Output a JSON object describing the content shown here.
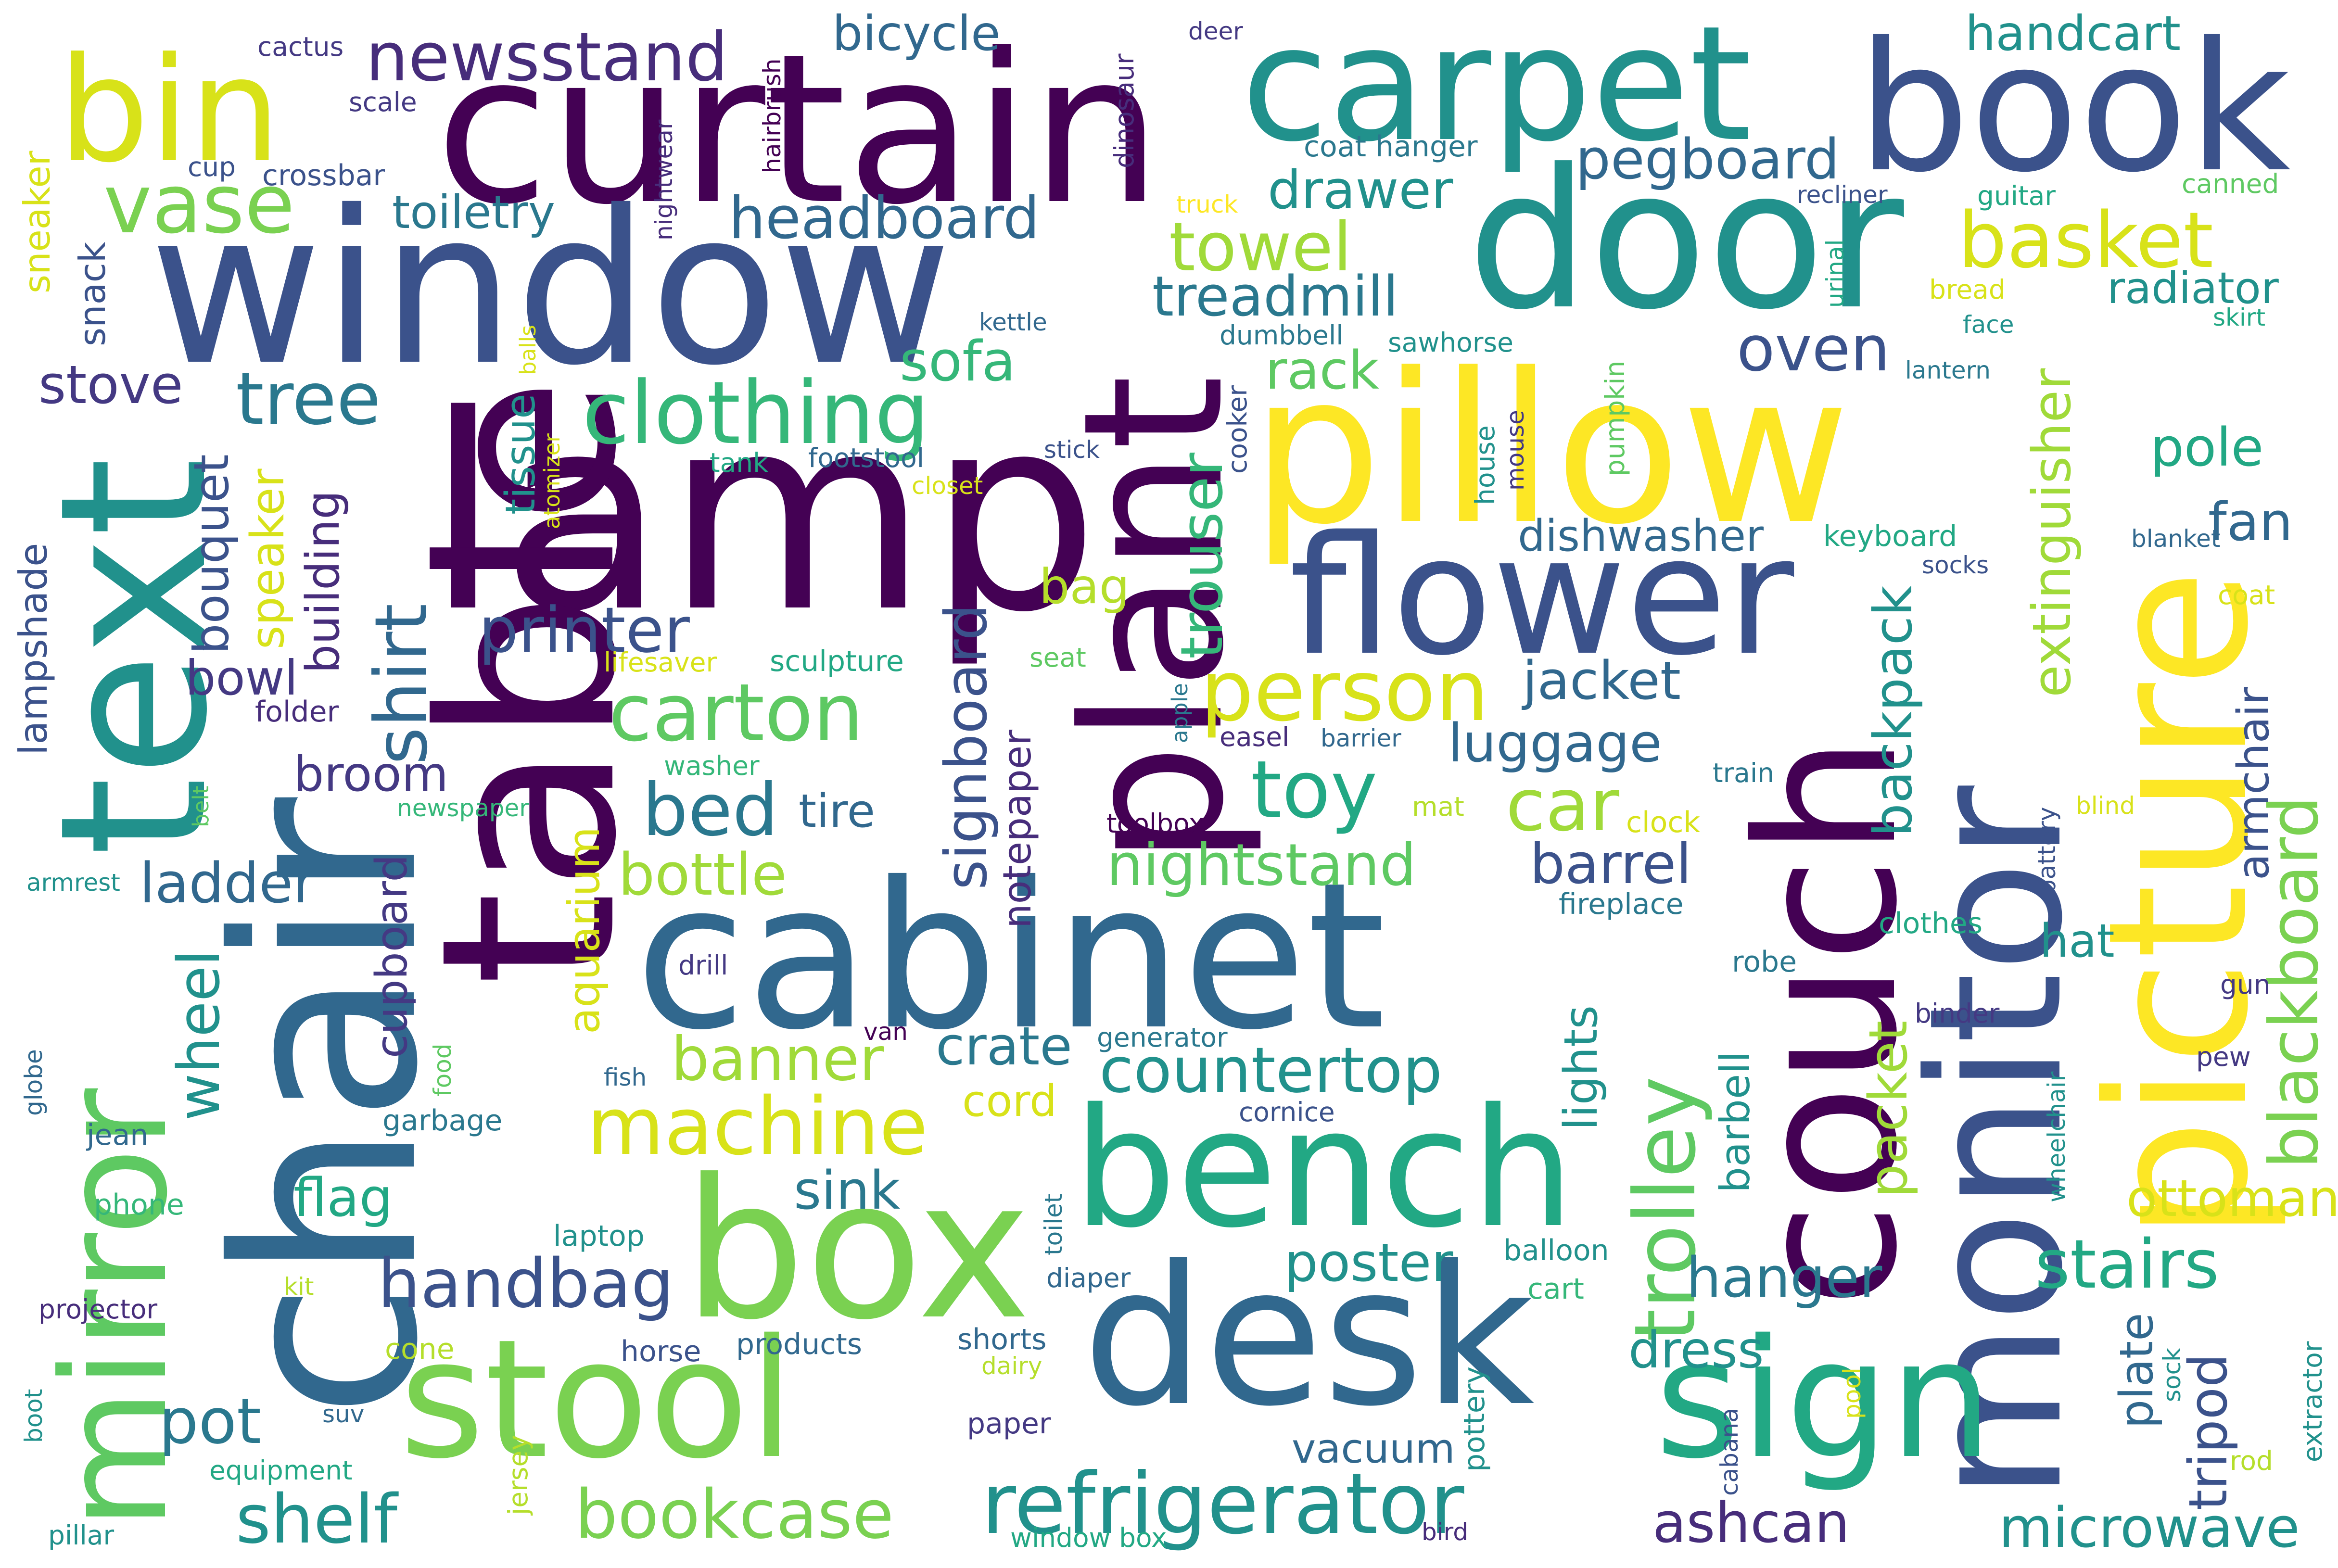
{
  "words": [
    {
      "text": "curtain",
      "color": "#440154"
    },
    {
      "text": "window",
      "color": "#3b528b"
    },
    {
      "text": "lamp",
      "color": "#440154"
    },
    {
      "text": "table",
      "color": "#440154"
    },
    {
      "text": "chair",
      "color": "#31688e"
    },
    {
      "text": "text",
      "color": "#21918c"
    },
    {
      "text": "mirror",
      "color": "#5ec962"
    },
    {
      "text": "bin",
      "color": "#d8e219"
    },
    {
      "text": "carpet",
      "color": "#21918c"
    },
    {
      "text": "book",
      "color": "#3b528b"
    },
    {
      "text": "door",
      "color": "#21918c"
    },
    {
      "text": "pillow",
      "color": "#fde725"
    },
    {
      "text": "flower",
      "color": "#3b528b"
    },
    {
      "text": "plant",
      "color": "#440154"
    },
    {
      "text": "picture",
      "color": "#fde725"
    },
    {
      "text": "couch",
      "color": "#440154"
    },
    {
      "text": "monitor",
      "color": "#3b528b"
    },
    {
      "text": "cabinet",
      "color": "#31688e"
    },
    {
      "text": "box",
      "color": "#7ad151"
    },
    {
      "text": "bench",
      "color": "#22a884"
    },
    {
      "text": "desk",
      "color": "#31688e"
    },
    {
      "text": "sign",
      "color": "#22a884"
    },
    {
      "text": "stool",
      "color": "#7ad151"
    },
    {
      "text": "newsstand",
      "color": "#472d7b"
    },
    {
      "text": "vase",
      "color": "#7ad151"
    },
    {
      "text": "clothing",
      "color": "#35b779"
    },
    {
      "text": "tree",
      "color": "#2a788e"
    },
    {
      "text": "printer",
      "color": "#3b528b"
    },
    {
      "text": "carton",
      "color": "#5ec962"
    },
    {
      "text": "person",
      "color": "#d8e219"
    },
    {
      "text": "refrigerator",
      "color": "#21918c"
    },
    {
      "text": "basket",
      "color": "#d8e219"
    },
    {
      "text": "bed",
      "color": "#2a788e"
    },
    {
      "text": "toy",
      "color": "#22a884"
    },
    {
      "text": "trolley",
      "color": "#5ec962"
    },
    {
      "text": "blackboard",
      "color": "#7ad151"
    },
    {
      "text": "machine",
      "color": "#d8e219"
    },
    {
      "text": "shelf",
      "color": "#21918c"
    },
    {
      "text": "bookcase",
      "color": "#7ad151"
    },
    {
      "text": "stairs",
      "color": "#22a884"
    },
    {
      "text": "handbag",
      "color": "#3b528b"
    },
    {
      "text": "hanger",
      "color": "#2a788e"
    },
    {
      "text": "microwave",
      "color": "#21918c"
    },
    {
      "text": "ashcan",
      "color": "#472d7b"
    },
    {
      "text": "countertop",
      "color": "#21918c"
    },
    {
      "text": "nightstand",
      "color": "#5ec962"
    },
    {
      "text": "signboard",
      "color": "#3b528b"
    },
    {
      "text": "oven",
      "color": "#3b528b"
    },
    {
      "text": "headboard",
      "color": "#31688e"
    },
    {
      "text": "shirt",
      "color": "#31688e"
    },
    {
      "text": "towel",
      "color": "#a0da39"
    },
    {
      "text": "treadmill",
      "color": "#2a788e"
    },
    {
      "text": "extinguisher",
      "color": "#a0da39"
    },
    {
      "text": "handcart",
      "color": "#21918c"
    },
    {
      "text": "pegboard",
      "color": "#31688e"
    },
    {
      "text": "bicycle",
      "color": "#31688e"
    },
    {
      "text": "drawer",
      "color": "#21918c"
    },
    {
      "text": "sofa",
      "color": "#35b779"
    },
    {
      "text": "rack",
      "color": "#5ec962"
    },
    {
      "text": "trouser",
      "color": "#35b779"
    },
    {
      "text": "toiletry",
      "color": "#2a788e"
    },
    {
      "text": "stove",
      "color": "#443983"
    },
    {
      "text": "bouquet",
      "color": "#3b528b"
    },
    {
      "text": "speaker",
      "color": "#d8e219"
    },
    {
      "text": "building",
      "color": "#472d7b"
    },
    {
      "text": "bowl",
      "color": "#443983"
    },
    {
      "text": "broom",
      "color": "#443983"
    },
    {
      "text": "ladder",
      "color": "#31688e"
    },
    {
      "text": "wheel",
      "color": "#21918c"
    },
    {
      "text": "cupboard",
      "color": "#443983"
    },
    {
      "text": "aquarium",
      "color": "#d8e219"
    },
    {
      "text": "bottle",
      "color": "#a0da39"
    },
    {
      "text": "banner",
      "color": "#a0da39"
    },
    {
      "text": "crate",
      "color": "#2a788e"
    },
    {
      "text": "tire",
      "color": "#31688e"
    },
    {
      "text": "car",
      "color": "#a0da39"
    },
    {
      "text": "luggage",
      "color": "#31688e"
    },
    {
      "text": "jacket",
      "color": "#31688e"
    },
    {
      "text": "dishwasher",
      "color": "#31688e"
    },
    {
      "text": "backpack",
      "color": "#21918c"
    },
    {
      "text": "barrel",
      "color": "#3b528b"
    },
    {
      "text": "lights",
      "color": "#21918c"
    },
    {
      "text": "packet",
      "color": "#a0da39"
    },
    {
      "text": "barbell",
      "color": "#21918c"
    },
    {
      "text": "hat",
      "color": "#21918c"
    },
    {
      "text": "ottoman",
      "color": "#d8e219"
    },
    {
      "text": "tripod",
      "color": "#3b528b"
    },
    {
      "text": "plate",
      "color": "#31688e"
    },
    {
      "text": "armchair",
      "color": "#3b528b"
    },
    {
      "text": "fan",
      "color": "#31688e"
    },
    {
      "text": "pole",
      "color": "#22a884"
    },
    {
      "text": "radiator",
      "color": "#21918c"
    },
    {
      "text": "poster",
      "color": "#21918c"
    },
    {
      "text": "dress",
      "color": "#21918c"
    },
    {
      "text": "vacuum",
      "color": "#31688e"
    },
    {
      "text": "sink",
      "color": "#2a788e"
    },
    {
      "text": "flag",
      "color": "#22a884"
    },
    {
      "text": "pot",
      "color": "#2a788e"
    },
    {
      "text": "cord",
      "color": "#d8e219"
    },
    {
      "text": "bag",
      "color": "#b5de2b"
    },
    {
      "text": "tissue",
      "color": "#21918c"
    },
    {
      "text": "lampshade",
      "color": "#3b528b"
    },
    {
      "text": "snack",
      "color": "#3b528b"
    },
    {
      "text": "sneaker",
      "color": "#d8e219"
    },
    {
      "text": "notepaper",
      "color": "#472d7b"
    },
    {
      "text": "scale",
      "color": "#443983"
    },
    {
      "text": "cactus",
      "color": "#443983"
    },
    {
      "text": "cup",
      "color": "#3b528b"
    },
    {
      "text": "crossbar",
      "color": "#3b528b"
    },
    {
      "text": "hairbrush",
      "color": "#440154"
    },
    {
      "text": "nightwear",
      "color": "#472d7b"
    },
    {
      "text": "dinosaur",
      "color": "#472d7b"
    },
    {
      "text": "deer",
      "color": "#443983"
    },
    {
      "text": "coat hanger",
      "color": "#2a788e"
    },
    {
      "text": "truck",
      "color": "#fde725"
    },
    {
      "text": "kettle",
      "color": "#31688e"
    },
    {
      "text": "dumbbell",
      "color": "#2a788e"
    },
    {
      "text": "sawhorse",
      "color": "#21918c"
    },
    {
      "text": "recliner",
      "color": "#3b528b"
    },
    {
      "text": "guitar",
      "color": "#22a884"
    },
    {
      "text": "canned",
      "color": "#5ec962"
    },
    {
      "text": "bread",
      "color": "#d8e219"
    },
    {
      "text": "face",
      "color": "#21918c"
    },
    {
      "text": "skirt",
      "color": "#22a884"
    },
    {
      "text": "urinal",
      "color": "#22a884"
    },
    {
      "text": "lantern",
      "color": "#2a788e"
    },
    {
      "text": "balls",
      "color": "#d8e219"
    },
    {
      "text": "atomizer",
      "color": "#d8e219"
    },
    {
      "text": "tank",
      "color": "#22a884"
    },
    {
      "text": "footstool",
      "color": "#31688e"
    },
    {
      "text": "stick",
      "color": "#3b528b"
    },
    {
      "text": "closet",
      "color": "#d8e219"
    },
    {
      "text": "cooker",
      "color": "#3b528b"
    },
    {
      "text": "pumpkin",
      "color": "#5ec962"
    },
    {
      "text": "house",
      "color": "#21918c"
    },
    {
      "text": "mouse",
      "color": "#443983"
    },
    {
      "text": "keyboard",
      "color": "#22a884"
    },
    {
      "text": "socks",
      "color": "#3b528b"
    },
    {
      "text": "blanket",
      "color": "#31688e"
    },
    {
      "text": "coat",
      "color": "#d8e219"
    },
    {
      "text": "lifesaver",
      "color": "#d8e219"
    },
    {
      "text": "sculpture",
      "color": "#22a884"
    },
    {
      "text": "seat",
      "color": "#5ec962"
    },
    {
      "text": "folder",
      "color": "#472d7b"
    },
    {
      "text": "apple",
      "color": "#2a788e"
    },
    {
      "text": "easel",
      "color": "#472d7b"
    },
    {
      "text": "barrier",
      "color": "#31688e"
    },
    {
      "text": "washer",
      "color": "#35b779"
    },
    {
      "text": "train",
      "color": "#2a788e"
    },
    {
      "text": "newspaper",
      "color": "#35b779"
    },
    {
      "text": "belt",
      "color": "#5ec962"
    },
    {
      "text": "toolbox",
      "color": "#440154"
    },
    {
      "text": "mat",
      "color": "#b5de2b"
    },
    {
      "text": "clock",
      "color": "#d8e219"
    },
    {
      "text": "battery",
      "color": "#3b528b"
    },
    {
      "text": "blind",
      "color": "#d8e219"
    },
    {
      "text": "armrest",
      "color": "#21918c"
    },
    {
      "text": "fireplace",
      "color": "#2a788e"
    },
    {
      "text": "clothes",
      "color": "#22a884"
    },
    {
      "text": "drill",
      "color": "#443983"
    },
    {
      "text": "robe",
      "color": "#2a788e"
    },
    {
      "text": "gun",
      "color": "#443983"
    },
    {
      "text": "globe",
      "color": "#31688e"
    },
    {
      "text": "food",
      "color": "#5ec962"
    },
    {
      "text": "van",
      "color": "#440154"
    },
    {
      "text": "generator",
      "color": "#2a788e"
    },
    {
      "text": "binder",
      "color": "#443983"
    },
    {
      "text": "wheelchair",
      "color": "#21918c"
    },
    {
      "text": "pew",
      "color": "#443983"
    },
    {
      "text": "fish",
      "color": "#31688e"
    },
    {
      "text": "garbage",
      "color": "#2a788e"
    },
    {
      "text": "jean",
      "color": "#31688e"
    },
    {
      "text": "cornice",
      "color": "#3b528b"
    },
    {
      "text": "phone",
      "color": "#35b779"
    },
    {
      "text": "laptop",
      "color": "#21918c"
    },
    {
      "text": "toilet",
      "color": "#2a788e"
    },
    {
      "text": "balloon",
      "color": "#21918c"
    },
    {
      "text": "kit",
      "color": "#b5de2b"
    },
    {
      "text": "diaper",
      "color": "#31688e"
    },
    {
      "text": "cart",
      "color": "#35b779"
    },
    {
      "text": "projector",
      "color": "#472d7b"
    },
    {
      "text": "horse",
      "color": "#3b528b"
    },
    {
      "text": "shorts",
      "color": "#31688e"
    },
    {
      "text": "products",
      "color": "#31688e"
    },
    {
      "text": "cone",
      "color": "#b5de2b"
    },
    {
      "text": "dairy",
      "color": "#b5de2b"
    },
    {
      "text": "pottery",
      "color": "#21918c"
    },
    {
      "text": "cabana",
      "color": "#3b528b"
    },
    {
      "text": "pool",
      "color": "#d8e219"
    },
    {
      "text": "sock",
      "color": "#21918c"
    },
    {
      "text": "extractor",
      "color": "#21918c"
    },
    {
      "text": "boot",
      "color": "#21918c"
    },
    {
      "text": "suv",
      "color": "#31688e"
    },
    {
      "text": "jersey",
      "color": "#b5de2b"
    },
    {
      "text": "paper",
      "color": "#443983"
    },
    {
      "text": "equipment",
      "color": "#22a884"
    },
    {
      "text": "rod",
      "color": "#b5de2b"
    },
    {
      "text": "pillar",
      "color": "#21918c"
    },
    {
      "text": "window box",
      "color": "#22a884"
    },
    {
      "text": "bird",
      "color": "#472d7b"
    }
  ]
}
